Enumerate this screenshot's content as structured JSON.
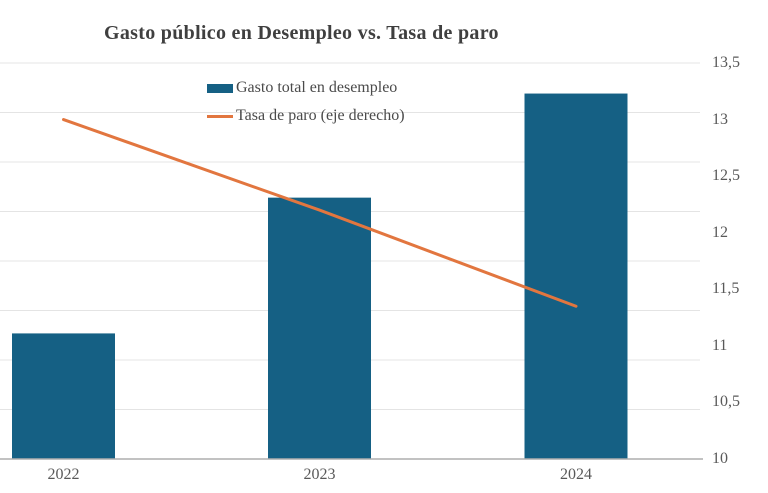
{
  "title": {
    "text": "Gasto público en Desempleo vs. Tasa de paro"
  },
  "legend": {
    "items": [
      {
        "label": "Gasto total en desempleo",
        "swatch": "bar"
      },
      {
        "label": "Tasa de paro (eje derecho)",
        "swatch": "line"
      }
    ]
  },
  "x_axis": {
    "labels": [
      "2022",
      "2023",
      "2024"
    ]
  },
  "right_axis": {
    "labels": [
      "13,5",
      "13",
      "12,5",
      "12",
      "11,5",
      "11",
      "10,5",
      "10"
    ],
    "min": 10,
    "max": 13.5
  },
  "colors": {
    "bar": "#156084",
    "line": "#E2763F",
    "title": "#3F3F3F",
    "axis_label": "#595959",
    "gridline": "#E4E4E4",
    "axis_line": "#ADADAD"
  },
  "chart_data": {
    "type": "bar",
    "subtype": "combo-bar-line-dual-axis",
    "title": "Gasto público en Desempleo vs. Tasa de paro",
    "categories": [
      "2022",
      "2023",
      "2024"
    ],
    "series": [
      {
        "name": "Gasto total en desempleo",
        "kind": "bar",
        "axis": "left",
        "values_right_axis_scale": [
          11.11,
          12.31,
          13.23
        ],
        "note": "Left axis tick labels are cropped out of the visible image; bar heights expressed on the right-axis pixel scale."
      },
      {
        "name": "Tasa de paro (eje derecho)",
        "kind": "line",
        "axis": "right",
        "values": [
          13.0,
          12.2,
          11.35
        ]
      }
    ],
    "xlabel": "",
    "ylabel": "",
    "right_ylim": [
      10,
      13.5
    ],
    "right_ticks": [
      13.5,
      13,
      12.5,
      12,
      11.5,
      11,
      10.5,
      10
    ],
    "grid": true,
    "gridline_count": 9,
    "legend_position": "top-center"
  }
}
